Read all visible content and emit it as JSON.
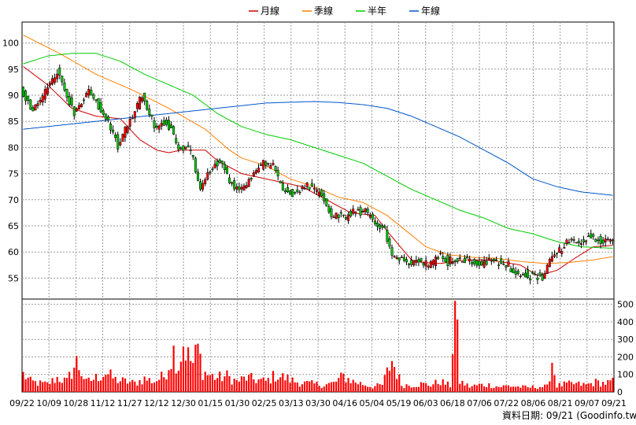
{
  "chart_data": {
    "type": "candlestick",
    "legend": {
      "placement": "top-center",
      "items": [
        {
          "name": "月線",
          "color": "#cc0000"
        },
        {
          "name": "季線",
          "color": "#ff8000"
        },
        {
          "name": "半年",
          "color": "#00cc00"
        },
        {
          "name": "年線",
          "color": "#0055cc"
        }
      ]
    },
    "price_axis": {
      "ylim": [
        51,
        104
      ],
      "ticks": [
        55,
        60,
        65,
        70,
        75,
        80,
        85,
        90,
        95,
        100
      ]
    },
    "volume_axis": {
      "ylim": [
        0,
        530
      ],
      "ticks": [
        0,
        100,
        200,
        300,
        400,
        500
      ],
      "side": "right"
    },
    "x_labels": [
      "09/22",
      "10/09",
      "10/28",
      "11/12",
      "11/27",
      "12/12",
      "12/30",
      "01/15",
      "01/30",
      "02/25",
      "03/13",
      "03/30",
      "04/16",
      "05/04",
      "05/19",
      "06/03",
      "06/18",
      "07/06",
      "07/22",
      "08/06",
      "08/21",
      "09/07",
      "09/21"
    ],
    "n_sessions": 244,
    "ma_series": [
      {
        "name": "月線",
        "points": [
          [
            0,
            95.5
          ],
          [
            10,
            92.0
          ],
          [
            20,
            87.5
          ],
          [
            30,
            86.0
          ],
          [
            40,
            85.5
          ],
          [
            48,
            81.5
          ],
          [
            55,
            79.5
          ],
          [
            60,
            79.0
          ],
          [
            65,
            79.5
          ],
          [
            75,
            79.5
          ],
          [
            80,
            77.5
          ],
          [
            90,
            75.0
          ],
          [
            100,
            74.0
          ],
          [
            110,
            73.0
          ],
          [
            115,
            72.5
          ],
          [
            125,
            70.0
          ],
          [
            135,
            67.5
          ],
          [
            145,
            67.0
          ],
          [
            150,
            64.0
          ],
          [
            160,
            58.5
          ],
          [
            165,
            58.0
          ],
          [
            172,
            57.8
          ],
          [
            182,
            58.5
          ],
          [
            192,
            58.5
          ],
          [
            205,
            57.5
          ],
          [
            212,
            55.5
          ],
          [
            220,
            56.5
          ],
          [
            228,
            59.0
          ],
          [
            235,
            61.0
          ],
          [
            244,
            61.3
          ]
        ]
      },
      {
        "name": "季線",
        "points": [
          [
            0,
            101.5
          ],
          [
            15,
            98.0
          ],
          [
            30,
            94.0
          ],
          [
            45,
            91.0
          ],
          [
            60,
            87.5
          ],
          [
            75,
            83.5
          ],
          [
            85,
            79.5
          ],
          [
            90,
            78.0
          ],
          [
            100,
            76.5
          ],
          [
            110,
            74.0
          ],
          [
            120,
            72.5
          ],
          [
            130,
            70.5
          ],
          [
            140,
            69.5
          ],
          [
            150,
            67.0
          ],
          [
            158,
            64.0
          ],
          [
            166,
            61.0
          ],
          [
            175,
            59.5
          ],
          [
            185,
            59.0
          ],
          [
            195,
            58.8
          ],
          [
            205,
            58.2
          ],
          [
            215,
            57.8
          ],
          [
            225,
            58.0
          ],
          [
            235,
            58.5
          ],
          [
            244,
            59.2
          ]
        ]
      },
      {
        "name": "半年",
        "points": [
          [
            0,
            96.0
          ],
          [
            10,
            97.5
          ],
          [
            20,
            98.0
          ],
          [
            30,
            98.0
          ],
          [
            40,
            96.5
          ],
          [
            50,
            94.0
          ],
          [
            60,
            92.0
          ],
          [
            70,
            90.0
          ],
          [
            80,
            86.5
          ],
          [
            90,
            84.0
          ],
          [
            100,
            82.5
          ],
          [
            110,
            81.5
          ],
          [
            120,
            80.0
          ],
          [
            130,
            78.5
          ],
          [
            140,
            77.0
          ],
          [
            150,
            74.5
          ],
          [
            160,
            72.0
          ],
          [
            170,
            70.0
          ],
          [
            180,
            68.0
          ],
          [
            190,
            66.5
          ],
          [
            200,
            64.5
          ],
          [
            210,
            63.5
          ],
          [
            220,
            62.0
          ],
          [
            230,
            61.0
          ],
          [
            244,
            60.7
          ]
        ]
      },
      {
        "name": "年線",
        "points": [
          [
            0,
            83.5
          ],
          [
            20,
            84.5
          ],
          [
            40,
            85.5
          ],
          [
            60,
            86.5
          ],
          [
            80,
            87.5
          ],
          [
            100,
            88.5
          ],
          [
            120,
            88.8
          ],
          [
            130,
            88.6
          ],
          [
            140,
            88.2
          ],
          [
            150,
            87.5
          ],
          [
            160,
            86.0
          ],
          [
            170,
            84.0
          ],
          [
            180,
            82.0
          ],
          [
            190,
            79.5
          ],
          [
            200,
            77.0
          ],
          [
            210,
            74.0
          ],
          [
            220,
            72.5
          ],
          [
            230,
            71.5
          ],
          [
            244,
            70.8
          ]
        ]
      }
    ],
    "price_path": [
      [
        0,
        91.0
      ],
      [
        5,
        87.0
      ],
      [
        10,
        90.5
      ],
      [
        15,
        94.5
      ],
      [
        18,
        91.0
      ],
      [
        22,
        86.5
      ],
      [
        28,
        91.0
      ],
      [
        32,
        88.0
      ],
      [
        36,
        84.5
      ],
      [
        40,
        80.5
      ],
      [
        45,
        85.0
      ],
      [
        50,
        90.0
      ],
      [
        55,
        84.0
      ],
      [
        60,
        85.0
      ],
      [
        65,
        80.0
      ],
      [
        70,
        79.5
      ],
      [
        72,
        75.0
      ],
      [
        74,
        71.5
      ],
      [
        78,
        76.0
      ],
      [
        82,
        77.5
      ],
      [
        86,
        73.5
      ],
      [
        90,
        71.5
      ],
      [
        95,
        74.5
      ],
      [
        100,
        77.0
      ],
      [
        104,
        76.5
      ],
      [
        108,
        72.0
      ],
      [
        112,
        71.0
      ],
      [
        118,
        73.0
      ],
      [
        124,
        71.0
      ],
      [
        128,
        67.0
      ],
      [
        133,
        66.5
      ],
      [
        137,
        67.5
      ],
      [
        142,
        68.0
      ],
      [
        146,
        65.5
      ],
      [
        150,
        64.5
      ],
      [
        153,
        59.0
      ],
      [
        156,
        58.5
      ],
      [
        160,
        58.0
      ],
      [
        164,
        58.5
      ],
      [
        168,
        57.0
      ],
      [
        172,
        59.5
      ],
      [
        176,
        58.2
      ],
      [
        182,
        58.5
      ],
      [
        188,
        58.0
      ],
      [
        195,
        58.3
      ],
      [
        200,
        57.8
      ],
      [
        205,
        56.0
      ],
      [
        210,
        55.5
      ],
      [
        215,
        55.0
      ],
      [
        218,
        58.5
      ],
      [
        222,
        60.5
      ],
      [
        226,
        62.0
      ],
      [
        230,
        61.5
      ],
      [
        234,
        63.0
      ],
      [
        238,
        62.5
      ],
      [
        241,
        62.0
      ],
      [
        244,
        62.3
      ]
    ],
    "volume_path": [
      [
        0,
        100
      ],
      [
        3,
        60
      ],
      [
        6,
        50
      ],
      [
        10,
        45
      ],
      [
        14,
        80
      ],
      [
        18,
        60
      ],
      [
        22,
        170
      ],
      [
        26,
        55
      ],
      [
        30,
        80
      ],
      [
        34,
        110
      ],
      [
        38,
        70
      ],
      [
        42,
        60
      ],
      [
        46,
        50
      ],
      [
        50,
        75
      ],
      [
        54,
        60
      ],
      [
        58,
        90
      ],
      [
        62,
        230
      ],
      [
        64,
        150
      ],
      [
        66,
        280
      ],
      [
        68,
        200
      ],
      [
        70,
        160
      ],
      [
        72,
        250
      ],
      [
        74,
        120
      ],
      [
        76,
        100
      ],
      [
        80,
        80
      ],
      [
        84,
        90
      ],
      [
        88,
        60
      ],
      [
        92,
        80
      ],
      [
        96,
        70
      ],
      [
        100,
        60
      ],
      [
        104,
        95
      ],
      [
        108,
        80
      ],
      [
        112,
        60
      ],
      [
        116,
        50
      ],
      [
        120,
        45
      ],
      [
        124,
        40
      ],
      [
        128,
        50
      ],
      [
        132,
        90
      ],
      [
        136,
        60
      ],
      [
        140,
        45
      ],
      [
        144,
        30
      ],
      [
        148,
        40
      ],
      [
        152,
        180
      ],
      [
        156,
        40
      ],
      [
        160,
        40
      ],
      [
        164,
        45
      ],
      [
        168,
        40
      ],
      [
        172,
        60
      ],
      [
        176,
        35
      ],
      [
        178,
        520
      ],
      [
        180,
        60
      ],
      [
        184,
        30
      ],
      [
        188,
        40
      ],
      [
        192,
        40
      ],
      [
        196,
        30
      ],
      [
        200,
        35
      ],
      [
        204,
        30
      ],
      [
        208,
        25
      ],
      [
        212,
        30
      ],
      [
        216,
        30
      ],
      [
        218,
        180
      ],
      [
        220,
        35
      ],
      [
        224,
        45
      ],
      [
        228,
        45
      ],
      [
        232,
        40
      ],
      [
        236,
        55
      ],
      [
        240,
        50
      ],
      [
        244,
        60
      ]
    ]
  },
  "footer": {
    "source_label": "資料日期: 09/21  (Goodinfo.tw)"
  }
}
